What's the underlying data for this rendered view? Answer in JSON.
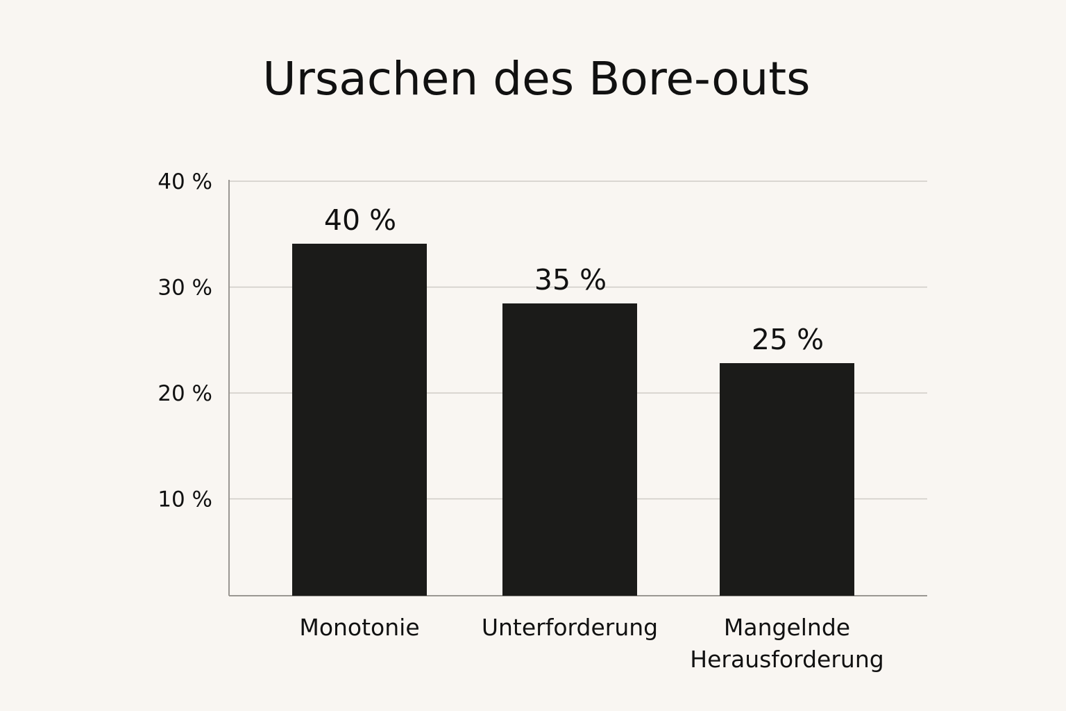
{
  "chart_data": {
    "type": "bar",
    "title": "Ursachen des Bore-outs",
    "xlabel": "",
    "ylabel": "",
    "categories": [
      "Monotonie",
      "Unterforderung",
      "Mangelnde Herausforderung"
    ],
    "category_label_lines": [
      [
        "Monotonie"
      ],
      [
        "Unterforderung"
      ],
      [
        "Mangelnde",
        "Herausforderung"
      ]
    ],
    "values": [
      40,
      35,
      25
    ],
    "value_labels": [
      "40 %",
      "35 %",
      "25 %"
    ],
    "y_ticks": [
      10,
      20,
      30,
      40
    ],
    "y_tick_labels": [
      "10 %",
      "20 %",
      "30 %",
      "40 %"
    ],
    "grid": true,
    "legend": "none",
    "colors": {
      "bar": "#1b1b19",
      "background": "#f9f6f2",
      "text": "#111111",
      "grid": "#cfcbc6",
      "axis": "#9a9792"
    }
  }
}
